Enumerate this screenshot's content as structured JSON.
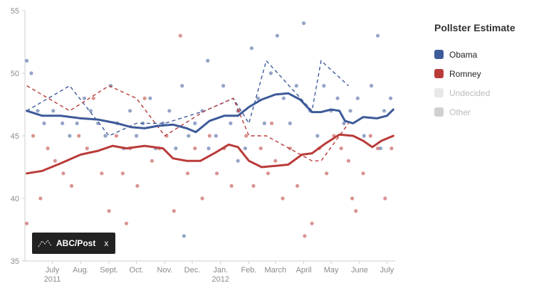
{
  "legend": {
    "title": "Pollster Estimate",
    "items": [
      {
        "label": "Obama",
        "color": "#3d5a99",
        "active": true
      },
      {
        "label": "Romney",
        "color": "#b93b39",
        "active": true
      },
      {
        "label": "Undecided",
        "color": "#e8e8e8",
        "active": false
      },
      {
        "label": "Other",
        "color": "#d0d0d0",
        "active": false
      }
    ]
  },
  "tooltip": {
    "label": "ABC/Post",
    "close": "x",
    "icon": "scatter-trend-icon"
  },
  "chart_data": {
    "type": "line",
    "x_range": [
      "2011-06-01",
      "2012-07-10"
    ],
    "ylim": [
      35,
      55
    ],
    "y_ticks": [
      35,
      40,
      45,
      50,
      55
    ],
    "x_ticks": [
      {
        "date": "2011-07-01",
        "label": "July",
        "sublabel": "2011"
      },
      {
        "date": "2011-08-01",
        "label": "Aug.",
        "sublabel": ""
      },
      {
        "date": "2011-09-01",
        "label": "Sept.",
        "sublabel": ""
      },
      {
        "date": "2011-10-01",
        "label": "Oct.",
        "sublabel": ""
      },
      {
        "date": "2011-11-01",
        "label": "Nov.",
        "sublabel": ""
      },
      {
        "date": "2011-12-01",
        "label": "Dec.",
        "sublabel": ""
      },
      {
        "date": "2012-01-01",
        "label": "Jan.",
        "sublabel": "2012"
      },
      {
        "date": "2012-02-01",
        "label": "Feb.",
        "sublabel": ""
      },
      {
        "date": "2012-03-01",
        "label": "March",
        "sublabel": ""
      },
      {
        "date": "2012-04-01",
        "label": "April",
        "sublabel": ""
      },
      {
        "date": "2012-05-01",
        "label": "May",
        "sublabel": ""
      },
      {
        "date": "2012-06-01",
        "label": "June",
        "sublabel": ""
      },
      {
        "date": "2012-07-01",
        "label": "July",
        "sublabel": ""
      }
    ],
    "series": [
      {
        "name": "Obama",
        "color": "#3d5a99",
        "estimate": [
          [
            "2011-06-03",
            47.0
          ],
          [
            "2011-06-20",
            46.6
          ],
          [
            "2011-07-10",
            46.6
          ],
          [
            "2011-08-01",
            46.4
          ],
          [
            "2011-08-20",
            46.3
          ],
          [
            "2011-09-10",
            46.0
          ],
          [
            "2011-09-25",
            45.7
          ],
          [
            "2011-10-10",
            45.6
          ],
          [
            "2011-10-25",
            45.8
          ],
          [
            "2011-11-10",
            45.9
          ],
          [
            "2011-11-25",
            45.6
          ],
          [
            "2011-12-05",
            45.3
          ],
          [
            "2011-12-20",
            46.2
          ],
          [
            "2012-01-05",
            46.6
          ],
          [
            "2012-01-20",
            46.6
          ],
          [
            "2012-02-01",
            47.3
          ],
          [
            "2012-02-15",
            47.9
          ],
          [
            "2012-03-01",
            48.3
          ],
          [
            "2012-03-15",
            48.4
          ],
          [
            "2012-03-28",
            47.9
          ],
          [
            "2012-04-10",
            46.9
          ],
          [
            "2012-04-20",
            46.9
          ],
          [
            "2012-05-01",
            47.1
          ],
          [
            "2012-05-10",
            47.0
          ],
          [
            "2012-05-16",
            46.2
          ],
          [
            "2012-05-25",
            46.0
          ],
          [
            "2012-06-05",
            46.5
          ],
          [
            "2012-06-20",
            46.4
          ],
          [
            "2012-07-01",
            46.6
          ],
          [
            "2012-07-08",
            47.1
          ]
        ],
        "abc_post": [
          [
            "2011-06-03",
            47
          ],
          [
            "2011-07-20",
            49
          ],
          [
            "2011-09-01",
            45
          ],
          [
            "2011-10-01",
            46
          ],
          [
            "2011-11-01",
            46
          ],
          [
            "2011-12-15",
            47
          ],
          [
            "2012-01-15",
            48
          ],
          [
            "2012-02-01",
            46
          ],
          [
            "2012-02-20",
            51
          ],
          [
            "2012-04-10",
            47
          ],
          [
            "2012-04-20",
            51
          ],
          [
            "2012-05-20",
            49
          ]
        ],
        "polls": [
          [
            "2011-06-03",
            51
          ],
          [
            "2011-06-08",
            50
          ],
          [
            "2011-06-15",
            47
          ],
          [
            "2011-06-22",
            46
          ],
          [
            "2011-07-02",
            47
          ],
          [
            "2011-07-12",
            46
          ],
          [
            "2011-07-20",
            45
          ],
          [
            "2011-07-28",
            46
          ],
          [
            "2011-08-05",
            48
          ],
          [
            "2011-08-12",
            47
          ],
          [
            "2011-08-20",
            46
          ],
          [
            "2011-08-28",
            45
          ],
          [
            "2011-09-03",
            49
          ],
          [
            "2011-09-10",
            46
          ],
          [
            "2011-09-17",
            44
          ],
          [
            "2011-09-24",
            47
          ],
          [
            "2011-10-01",
            45
          ],
          [
            "2011-10-08",
            46
          ],
          [
            "2011-10-16",
            48
          ],
          [
            "2011-10-22",
            44
          ],
          [
            "2011-10-30",
            46
          ],
          [
            "2011-11-06",
            47
          ],
          [
            "2011-11-13",
            44
          ],
          [
            "2011-11-20",
            49
          ],
          [
            "2011-11-27",
            45
          ],
          [
            "2011-12-04",
            46
          ],
          [
            "2011-12-12",
            47
          ],
          [
            "2011-12-19",
            44
          ],
          [
            "2011-12-27",
            45
          ],
          [
            "2012-01-04",
            49
          ],
          [
            "2012-01-12",
            46
          ],
          [
            "2012-01-20",
            47
          ],
          [
            "2012-01-28",
            44
          ],
          [
            "2012-02-04",
            52
          ],
          [
            "2012-02-11",
            48
          ],
          [
            "2012-02-18",
            46
          ],
          [
            "2012-02-25",
            50
          ],
          [
            "2012-03-03",
            53
          ],
          [
            "2012-03-10",
            48
          ],
          [
            "2012-03-17",
            46
          ],
          [
            "2012-03-24",
            49
          ],
          [
            "2012-04-01",
            54
          ],
          [
            "2012-04-08",
            47
          ],
          [
            "2012-04-16",
            45
          ],
          [
            "2012-04-23",
            49
          ],
          [
            "2012-05-01",
            47
          ],
          [
            "2012-05-08",
            48
          ],
          [
            "2012-05-15",
            46
          ],
          [
            "2012-05-22",
            47
          ],
          [
            "2012-05-30",
            48
          ],
          [
            "2012-06-06",
            45
          ],
          [
            "2012-06-14",
            49
          ],
          [
            "2012-06-21",
            53
          ],
          [
            "2012-06-28",
            47
          ],
          [
            "2012-07-05",
            48
          ],
          [
            "2011-11-22",
            37
          ],
          [
            "2011-12-18",
            51
          ],
          [
            "2012-01-20",
            43
          ],
          [
            "2012-06-24",
            44
          ]
        ]
      },
      {
        "name": "Romney",
        "color": "#b93b39",
        "estimate": [
          [
            "2011-06-03",
            42.0
          ],
          [
            "2011-06-20",
            42.2
          ],
          [
            "2011-07-10",
            42.8
          ],
          [
            "2011-08-01",
            43.5
          ],
          [
            "2011-08-20",
            43.8
          ],
          [
            "2011-09-05",
            44.2
          ],
          [
            "2011-09-20",
            44.0
          ],
          [
            "2011-10-10",
            44.2
          ],
          [
            "2011-10-30",
            44.0
          ],
          [
            "2011-11-10",
            43.2
          ],
          [
            "2011-11-25",
            43.0
          ],
          [
            "2011-12-10",
            43.0
          ],
          [
            "2011-12-25",
            43.6
          ],
          [
            "2012-01-10",
            44.3
          ],
          [
            "2012-01-20",
            44.1
          ],
          [
            "2012-02-01",
            43.0
          ],
          [
            "2012-02-15",
            42.5
          ],
          [
            "2012-03-01",
            42.6
          ],
          [
            "2012-03-15",
            42.7
          ],
          [
            "2012-03-30",
            43.5
          ],
          [
            "2012-04-10",
            43.6
          ],
          [
            "2012-04-25",
            44.4
          ],
          [
            "2012-05-10",
            45.1
          ],
          [
            "2012-05-25",
            45.0
          ],
          [
            "2012-06-05",
            44.6
          ],
          [
            "2012-06-15",
            44.1
          ],
          [
            "2012-06-25",
            44.6
          ],
          [
            "2012-07-08",
            45.0
          ]
        ],
        "abc_post": [
          [
            "2011-06-03",
            49
          ],
          [
            "2011-07-20",
            47
          ],
          [
            "2011-09-01",
            49
          ],
          [
            "2011-10-01",
            48
          ],
          [
            "2011-11-01",
            45
          ],
          [
            "2011-12-15",
            47
          ],
          [
            "2012-01-15",
            48
          ],
          [
            "2012-02-01",
            45
          ],
          [
            "2012-02-20",
            45
          ],
          [
            "2012-04-10",
            43
          ],
          [
            "2012-04-20",
            43
          ],
          [
            "2012-05-20",
            46
          ]
        ],
        "polls": [
          [
            "2011-06-03",
            38
          ],
          [
            "2011-06-10",
            45
          ],
          [
            "2011-06-18",
            40
          ],
          [
            "2011-06-26",
            44
          ],
          [
            "2011-07-04",
            43
          ],
          [
            "2011-07-13",
            42
          ],
          [
            "2011-07-22",
            41
          ],
          [
            "2011-07-30",
            45
          ],
          [
            "2011-08-08",
            44
          ],
          [
            "2011-08-15",
            48
          ],
          [
            "2011-08-24",
            42
          ],
          [
            "2011-09-01",
            39
          ],
          [
            "2011-09-09",
            45
          ],
          [
            "2011-09-16",
            42
          ],
          [
            "2011-09-24",
            44
          ],
          [
            "2011-10-02",
            41
          ],
          [
            "2011-10-10",
            48
          ],
          [
            "2011-10-18",
            43
          ],
          [
            "2011-10-26",
            44
          ],
          [
            "2011-11-03",
            45
          ],
          [
            "2011-11-11",
            39
          ],
          [
            "2011-11-18",
            53
          ],
          [
            "2011-11-26",
            42
          ],
          [
            "2011-12-04",
            44
          ],
          [
            "2011-12-12",
            40
          ],
          [
            "2011-12-20",
            45
          ],
          [
            "2011-12-28",
            42
          ],
          [
            "2012-01-05",
            44
          ],
          [
            "2012-01-13",
            41
          ],
          [
            "2012-01-21",
            47
          ],
          [
            "2012-01-29",
            45
          ],
          [
            "2012-02-06",
            41
          ],
          [
            "2012-02-14",
            44
          ],
          [
            "2012-02-22",
            42
          ],
          [
            "2012-03-01",
            43
          ],
          [
            "2012-03-09",
            40
          ],
          [
            "2012-03-17",
            44
          ],
          [
            "2012-03-25",
            41
          ],
          [
            "2012-04-02",
            37
          ],
          [
            "2012-04-10",
            38
          ],
          [
            "2012-04-18",
            44
          ],
          [
            "2012-04-26",
            42
          ],
          [
            "2012-05-04",
            45
          ],
          [
            "2012-05-12",
            44
          ],
          [
            "2012-05-20",
            43
          ],
          [
            "2012-05-28",
            39
          ],
          [
            "2012-06-05",
            42
          ],
          [
            "2012-06-13",
            45
          ],
          [
            "2012-06-21",
            44
          ],
          [
            "2012-06-29",
            40
          ],
          [
            "2012-07-06",
            44
          ],
          [
            "2011-09-20",
            38
          ],
          [
            "2012-02-26",
            46
          ],
          [
            "2012-05-24",
            40
          ]
        ]
      }
    ]
  }
}
